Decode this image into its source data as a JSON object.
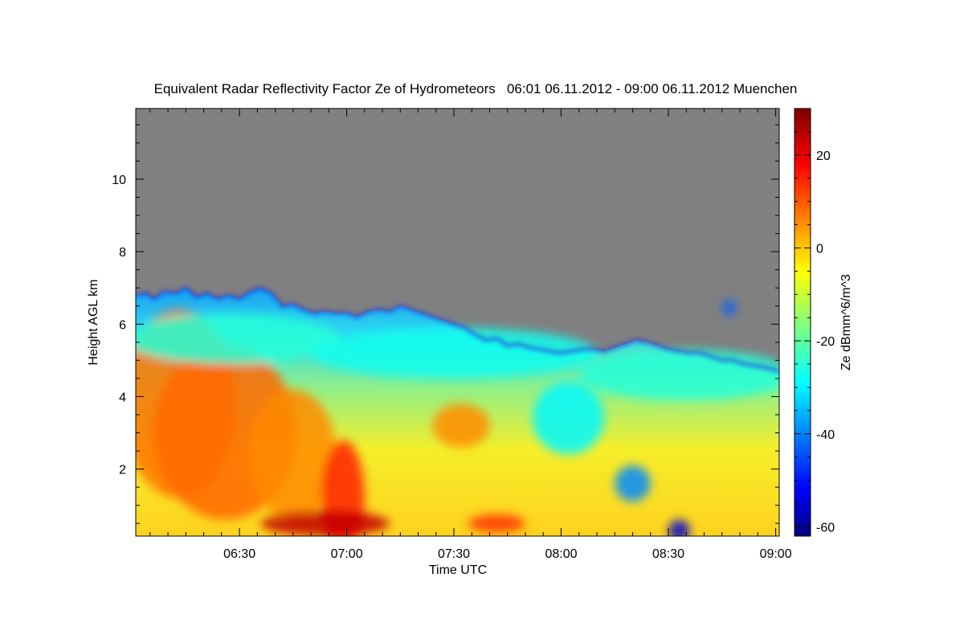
{
  "chart_data": {
    "type": "heatmap",
    "title": "Equivalent Radar Reflectivity Factor Ze of Hydrometeors   06:01 06.11.2012 - 09:00 06.11.2012 Muenchen",
    "xlabel": "Time UTC",
    "ylabel": "Height AGL km",
    "colorbar_label": "Ze dBmm^6/m^3",
    "x_range_minutes": [
      361,
      541
    ],
    "x_ticks": [
      {
        "value": 390,
        "label": "06:30"
      },
      {
        "value": 420,
        "label": "07:00"
      },
      {
        "value": 450,
        "label": "07:30"
      },
      {
        "value": 480,
        "label": "08:00"
      },
      {
        "value": 510,
        "label": "08:30"
      },
      {
        "value": 540,
        "label": "09:00"
      }
    ],
    "ylim": [
      0.15,
      11.95
    ],
    "y_ticks": [
      2,
      4,
      6,
      8,
      10
    ],
    "clim": [
      -62,
      30
    ],
    "cbar_ticks": [
      20,
      0,
      -20,
      -40,
      -60
    ],
    "colormap": "jet",
    "background_color": "#808080",
    "echo_top_km": [
      [
        361,
        6.8
      ],
      [
        364,
        6.85
      ],
      [
        366,
        6.7
      ],
      [
        369,
        6.9
      ],
      [
        372,
        6.85
      ],
      [
        375,
        7.0
      ],
      [
        378,
        6.75
      ],
      [
        381,
        6.85
      ],
      [
        384,
        6.7
      ],
      [
        387,
        6.8
      ],
      [
        390,
        6.7
      ],
      [
        393,
        6.9
      ],
      [
        396,
        7.0
      ],
      [
        399,
        6.85
      ],
      [
        402,
        6.5
      ],
      [
        405,
        6.55
      ],
      [
        408,
        6.4
      ],
      [
        411,
        6.3
      ],
      [
        414,
        6.35
      ],
      [
        417,
        6.3
      ],
      [
        420,
        6.3
      ],
      [
        423,
        6.2
      ],
      [
        426,
        6.35
      ],
      [
        429,
        6.4
      ],
      [
        432,
        6.35
      ],
      [
        435,
        6.5
      ],
      [
        438,
        6.4
      ],
      [
        441,
        6.3
      ],
      [
        444,
        6.2
      ],
      [
        447,
        6.1
      ],
      [
        450,
        6.0
      ],
      [
        453,
        5.9
      ],
      [
        456,
        5.7
      ],
      [
        459,
        5.55
      ],
      [
        462,
        5.6
      ],
      [
        465,
        5.4
      ],
      [
        468,
        5.45
      ],
      [
        471,
        5.35
      ],
      [
        474,
        5.3
      ],
      [
        477,
        5.25
      ],
      [
        480,
        5.2
      ],
      [
        483,
        5.25
      ],
      [
        486,
        5.3
      ],
      [
        489,
        5.3
      ],
      [
        492,
        5.25
      ],
      [
        495,
        5.35
      ],
      [
        498,
        5.45
      ],
      [
        501,
        5.55
      ],
      [
        504,
        5.5
      ],
      [
        507,
        5.4
      ],
      [
        510,
        5.3
      ],
      [
        513,
        5.25
      ],
      [
        516,
        5.2
      ],
      [
        519,
        5.2
      ],
      [
        522,
        5.1
      ],
      [
        525,
        5.0
      ],
      [
        528,
        5.0
      ],
      [
        531,
        4.9
      ],
      [
        534,
        4.85
      ],
      [
        537,
        4.8
      ],
      [
        541,
        4.7
      ]
    ],
    "echo_cells": [
      {
        "t": 373,
        "h": 3.8,
        "rt": 16,
        "rh": 2.6,
        "dbz": 8
      },
      {
        "t": 386,
        "h": 3.0,
        "rt": 20,
        "rh": 2.4,
        "dbz": 9
      },
      {
        "t": 405,
        "h": 2.4,
        "rt": 12,
        "rh": 1.8,
        "dbz": 6
      },
      {
        "t": 419,
        "h": 1.2,
        "rt": 6,
        "rh": 1.6,
        "dbz": 16
      },
      {
        "t": 414,
        "h": 0.5,
        "rt": 18,
        "rh": 0.35,
        "dbz": 24
      },
      {
        "t": 452,
        "h": 3.2,
        "rt": 8,
        "rh": 0.6,
        "dbz": 6
      },
      {
        "t": 462,
        "h": 0.5,
        "rt": 8,
        "rh": 0.25,
        "dbz": 14
      },
      {
        "t": 482,
        "h": 3.4,
        "rt": 10,
        "rh": 1.0,
        "dbz": -28
      },
      {
        "t": 500,
        "h": 1.6,
        "rt": 5,
        "rh": 0.5,
        "dbz": -38
      },
      {
        "t": 513,
        "h": 0.3,
        "rt": 3,
        "rh": 0.3,
        "dbz": -55
      },
      {
        "t": 388,
        "h": 5.6,
        "rt": 30,
        "rh": 0.7,
        "dbz": -24
      },
      {
        "t": 450,
        "h": 5.2,
        "rt": 40,
        "rh": 0.7,
        "dbz": -26
      },
      {
        "t": 515,
        "h": 4.6,
        "rt": 30,
        "rh": 0.7,
        "dbz": -24
      },
      {
        "t": 527,
        "h": 6.45,
        "rt": 1.8,
        "rh": 0.22,
        "dbz": -42
      }
    ]
  }
}
